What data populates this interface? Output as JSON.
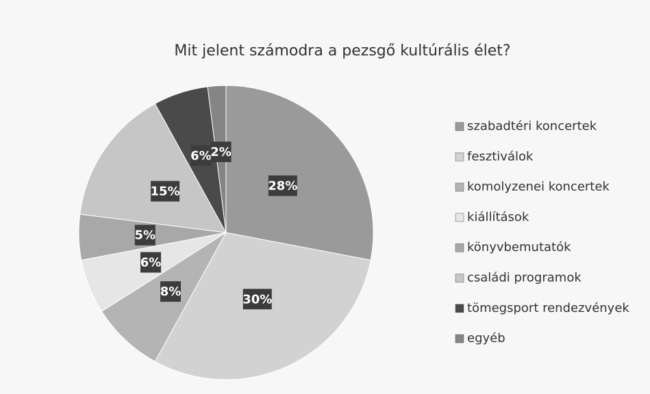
{
  "chart_data": {
    "type": "pie",
    "title": "Mit jelent számodra a pezsgő kultúrális élet?",
    "categories": [
      "szabadtéri koncertek",
      "fesztiválok",
      "komolyzenei koncertek",
      "kiállítások",
      "könyvbemutatók",
      "családi programok",
      "tömegsport rendezvények",
      "egyéb"
    ],
    "values": [
      28,
      30,
      8,
      6,
      5,
      15,
      6,
      2
    ],
    "value_labels": [
      "28%",
      "30%",
      "8%",
      "6%",
      "5%",
      "15%",
      "6%",
      "2%"
    ],
    "colors": [
      "#9a9a9a",
      "#d2d2d2",
      "#b4b4b4",
      "#e6e6e6",
      "#a8a8a8",
      "#c6c6c6",
      "#4a4a4a",
      "#858585"
    ],
    "legend": "right"
  }
}
